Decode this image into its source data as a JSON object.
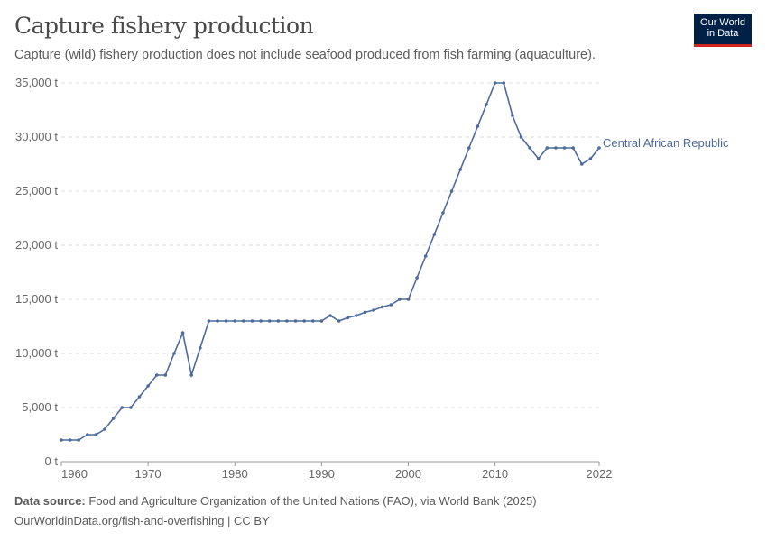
{
  "header": {
    "title": "Capture fishery production",
    "subtitle": "Capture (wild) fishery production does not include seafood produced from fish farming (aquaculture).",
    "logo_text": "Our World in Data"
  },
  "footer": {
    "source_label": "Data source:",
    "source": "Food and Agriculture Organization of the United Nations (FAO), via World Bank (2025)",
    "url": "OurWorldinData.org/fish-and-overfishing | CC BY"
  },
  "chart_data": {
    "type": "line",
    "title": "Capture fishery production",
    "xlabel": "",
    "ylabel": "",
    "xlim": [
      1960,
      2022
    ],
    "ylim": [
      0,
      35000
    ],
    "x_ticks": [
      "1960",
      "1970",
      "1980",
      "1990",
      "2000",
      "2010",
      "2022"
    ],
    "y_ticks": [
      "0 t",
      "5,000 t",
      "10,000 t",
      "15,000 t",
      "20,000 t",
      "25,000 t",
      "30,000 t",
      "35,000 t"
    ],
    "grid": "horizontal dashed",
    "colors": {
      "series": "#4c6a9c"
    },
    "series": [
      {
        "name": "Central African Republic",
        "x": [
          1960,
          1961,
          1962,
          1963,
          1964,
          1965,
          1966,
          1967,
          1968,
          1969,
          1970,
          1971,
          1972,
          1973,
          1974,
          1975,
          1976,
          1977,
          1978,
          1979,
          1980,
          1981,
          1982,
          1983,
          1984,
          1985,
          1986,
          1987,
          1988,
          1989,
          1990,
          1991,
          1992,
          1993,
          1994,
          1995,
          1996,
          1997,
          1998,
          1999,
          2000,
          2001,
          2002,
          2003,
          2004,
          2005,
          2006,
          2007,
          2008,
          2009,
          2010,
          2011,
          2012,
          2013,
          2014,
          2015,
          2016,
          2017,
          2018,
          2019,
          2020,
          2021,
          2022
        ],
        "values": [
          2000,
          2000,
          2000,
          2500,
          2500,
          3000,
          4000,
          5000,
          5000,
          6000,
          7000,
          8000,
          8000,
          10000,
          11900,
          8000,
          10500,
          13000,
          13000,
          13000,
          13000,
          13000,
          13000,
          13000,
          13000,
          13000,
          13000,
          13000,
          13000,
          13000,
          13000,
          13500,
          13000,
          13300,
          13500,
          13800,
          14000,
          14300,
          14500,
          15000,
          15000,
          17000,
          19000,
          21000,
          23000,
          25000,
          27000,
          29000,
          31000,
          33000,
          35000,
          35000,
          32000,
          30000,
          29000,
          28000,
          29000,
          29000,
          29000,
          29000,
          27500,
          28000,
          29000
        ]
      }
    ]
  }
}
